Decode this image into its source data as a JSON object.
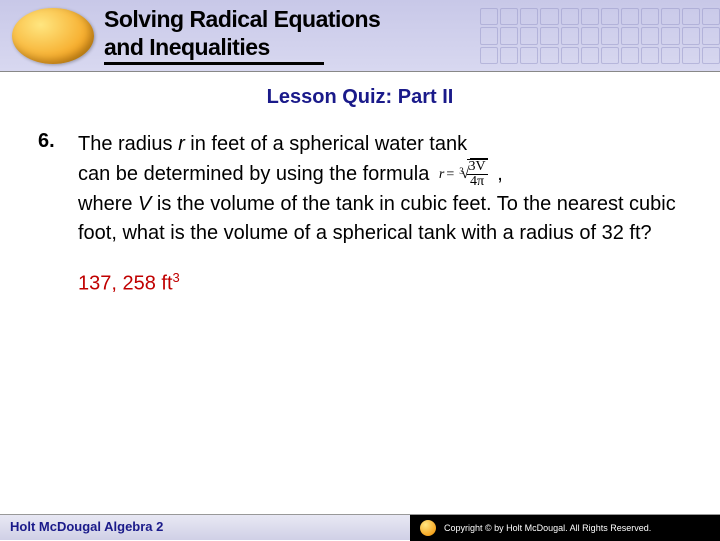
{
  "header": {
    "title_line1": "Solving Radical Equations",
    "title_line2": "and Inequalities",
    "background_color": "#ccccee",
    "oval_color": "#f5a623"
  },
  "lesson_quiz_label": "Lesson Quiz: Part II",
  "problem": {
    "number": "6.",
    "line1_pre": "The radius ",
    "line1_var": "r",
    "line1_post": " in feet of a spherical water tank",
    "line2_pre": "can be determined by using the formula ",
    "formula": {
      "lhs_var": "r",
      "eq": "=",
      "root_index": "3",
      "numerator": "3V",
      "denominator": "4π"
    },
    "line2_trail": " ,",
    "line3_pre": "where ",
    "line3_var": "V",
    "line3_post": " is the volume of the tank in cubic feet. To the nearest cubic foot, what is the volume of a spherical tank with a radius of 32 ft?"
  },
  "answer": {
    "value": "137, 258 ft",
    "exponent": "3",
    "color": "#c00000"
  },
  "footer": {
    "left": "Holt McDougal Algebra 2",
    "right": "Copyright © by Holt McDougal. All Rights Reserved."
  },
  "colors": {
    "heading_blue": "#1a1a8a",
    "body_text": "#000000",
    "page_bg": "#ffffff"
  }
}
